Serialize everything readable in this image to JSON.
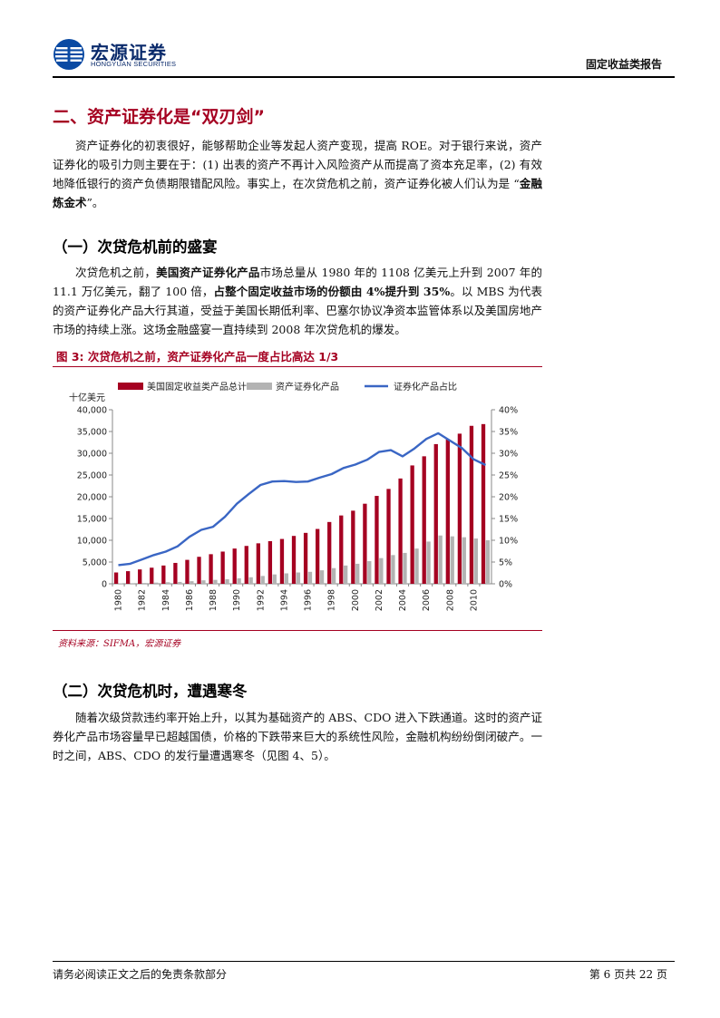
{
  "header": {
    "brand_cn": "宏源证券",
    "brand_en": "HONGYUAN SECURITIES",
    "report_type": "固定收益类报告"
  },
  "section": {
    "title": "二、资产证券化是“双刃剑”",
    "intro": {
      "t1": "资产证券化的初衷很好，能够帮助企业等发起人资产变现，提高 ROE。对于银行来说，资产证券化的吸引力则主要在于：(1) 出表的资产不再计入风险资产从而提高了资本充足率，(2) 有效地降低银行的资产负债期限错配风险。事实上，在次贷危机之前，资产证券化被人们认为是 “",
      "b1": "金融炼金术",
      "t2": "”。"
    }
  },
  "sub1": {
    "title": "（一）次贷危机前的盛宴",
    "para": {
      "t1": "次贷危机之前，",
      "b1": "美国资产证券化产品",
      "t2": "市场总量从 1980 年的 1108 亿美元上升到 2007 年的 11.1 万亿美元，翻了 100 倍，",
      "b2": "占整个固定收益市场的份额由 4%提升到 35%",
      "t3": "。以 MBS 为代表的资产证券化产品大行其道，受益于美国长期低利率、巴塞尔协议净资本监管体系以及美国房地产市场的持续上涨。这场金融盛宴一直持续到 2008 年次贷危机的爆发。"
    }
  },
  "figure": {
    "title": "图 3:  次贷危机之前，资产证券化产品一度占比高达 1/3",
    "source": "资料来源：SIFMA，宏源证券"
  },
  "chart_data": {
    "type": "bar",
    "x": [
      1980,
      1981,
      1982,
      1983,
      1984,
      1985,
      1986,
      1987,
      1988,
      1989,
      1990,
      1991,
      1992,
      1993,
      1994,
      1995,
      1996,
      1997,
      1998,
      1999,
      2000,
      2001,
      2002,
      2003,
      2004,
      2005,
      2006,
      2007,
      2008,
      2009,
      2010,
      2011
    ],
    "x_tick_labels": [
      "1980",
      "1982",
      "1984",
      "1986",
      "1988",
      "1990",
      "1992",
      "1994",
      "1996",
      "1998",
      "2000",
      "2002",
      "2004",
      "2006",
      "2008",
      "2010"
    ],
    "series": [
      {
        "name": "美国固定收益类产品总计",
        "type": "bar",
        "color": "#a50021",
        "axis": "left",
        "values": [
          2600,
          2900,
          3300,
          3700,
          4200,
          4800,
          5500,
          6200,
          6800,
          7400,
          8100,
          8700,
          9300,
          9800,
          10300,
          11000,
          11700,
          12600,
          14200,
          15700,
          16800,
          18400,
          20200,
          21800,
          24200,
          27200,
          29300,
          32100,
          33200,
          34500,
          36300,
          36700
        ]
      },
      {
        "name": "资产证券化产品",
        "type": "bar",
        "color": "#b3b3b3",
        "axis": "left",
        "values": [
          110,
          140,
          190,
          270,
          350,
          430,
          600,
          800,
          900,
          1050,
          1250,
          1500,
          1800,
          2150,
          2400,
          2600,
          2750,
          3100,
          3600,
          4200,
          4600,
          5200,
          5900,
          6600,
          7100,
          8100,
          9700,
          11100,
          10900,
          10700,
          10400,
          10000
        ]
      },
      {
        "name": "证券化产品占比",
        "type": "line",
        "color": "#3a66c4",
        "axis": "right",
        "values": [
          4.3,
          4.6,
          5.6,
          6.6,
          7.4,
          8.6,
          10.8,
          12.4,
          13.1,
          15.4,
          18.4,
          20.6,
          22.7,
          23.5,
          23.6,
          23.4,
          23.5,
          24.4,
          25.2,
          26.6,
          27.4,
          28.5,
          30.3,
          30.7,
          29.3,
          31.1,
          33.3,
          34.6,
          32.9,
          31.2,
          28.6,
          27.3
        ]
      }
    ],
    "ylabel": "十亿美元",
    "ylim": [
      0,
      40000
    ],
    "yticks": [
      0,
      5000,
      10000,
      15000,
      20000,
      25000,
      30000,
      35000,
      40000
    ],
    "ytick_labels": [
      "0",
      "5,000",
      "10,000",
      "15,000",
      "20,000",
      "25,000",
      "30,000",
      "35,000",
      "40,000"
    ],
    "y2lim": [
      0,
      40
    ],
    "y2ticks": [
      0,
      5,
      10,
      15,
      20,
      25,
      30,
      35,
      40
    ],
    "y2tick_labels": [
      "0%",
      "5%",
      "10%",
      "15%",
      "20%",
      "25%",
      "30%",
      "35%",
      "40%"
    ],
    "legend": "top",
    "grid": false
  },
  "sub2": {
    "title": "（二）次贷危机时，遭遇寒冬",
    "para": "随着次级贷款违约率开始上升，以其为基础资产的 ABS、CDO 进入下跌通道。这时的资产证券化产品市场容量早已超越国债，价格的下跌带来巨大的系统性风险，金融机构纷纷倒闭破产。一时之间，ABS、CDO 的发行量遭遇寒冬（见图 4、5）。"
  },
  "footer": {
    "disclaimer": "请务必阅读正文之后的免责条款部分",
    "page": "第 6 页共 22 页"
  }
}
